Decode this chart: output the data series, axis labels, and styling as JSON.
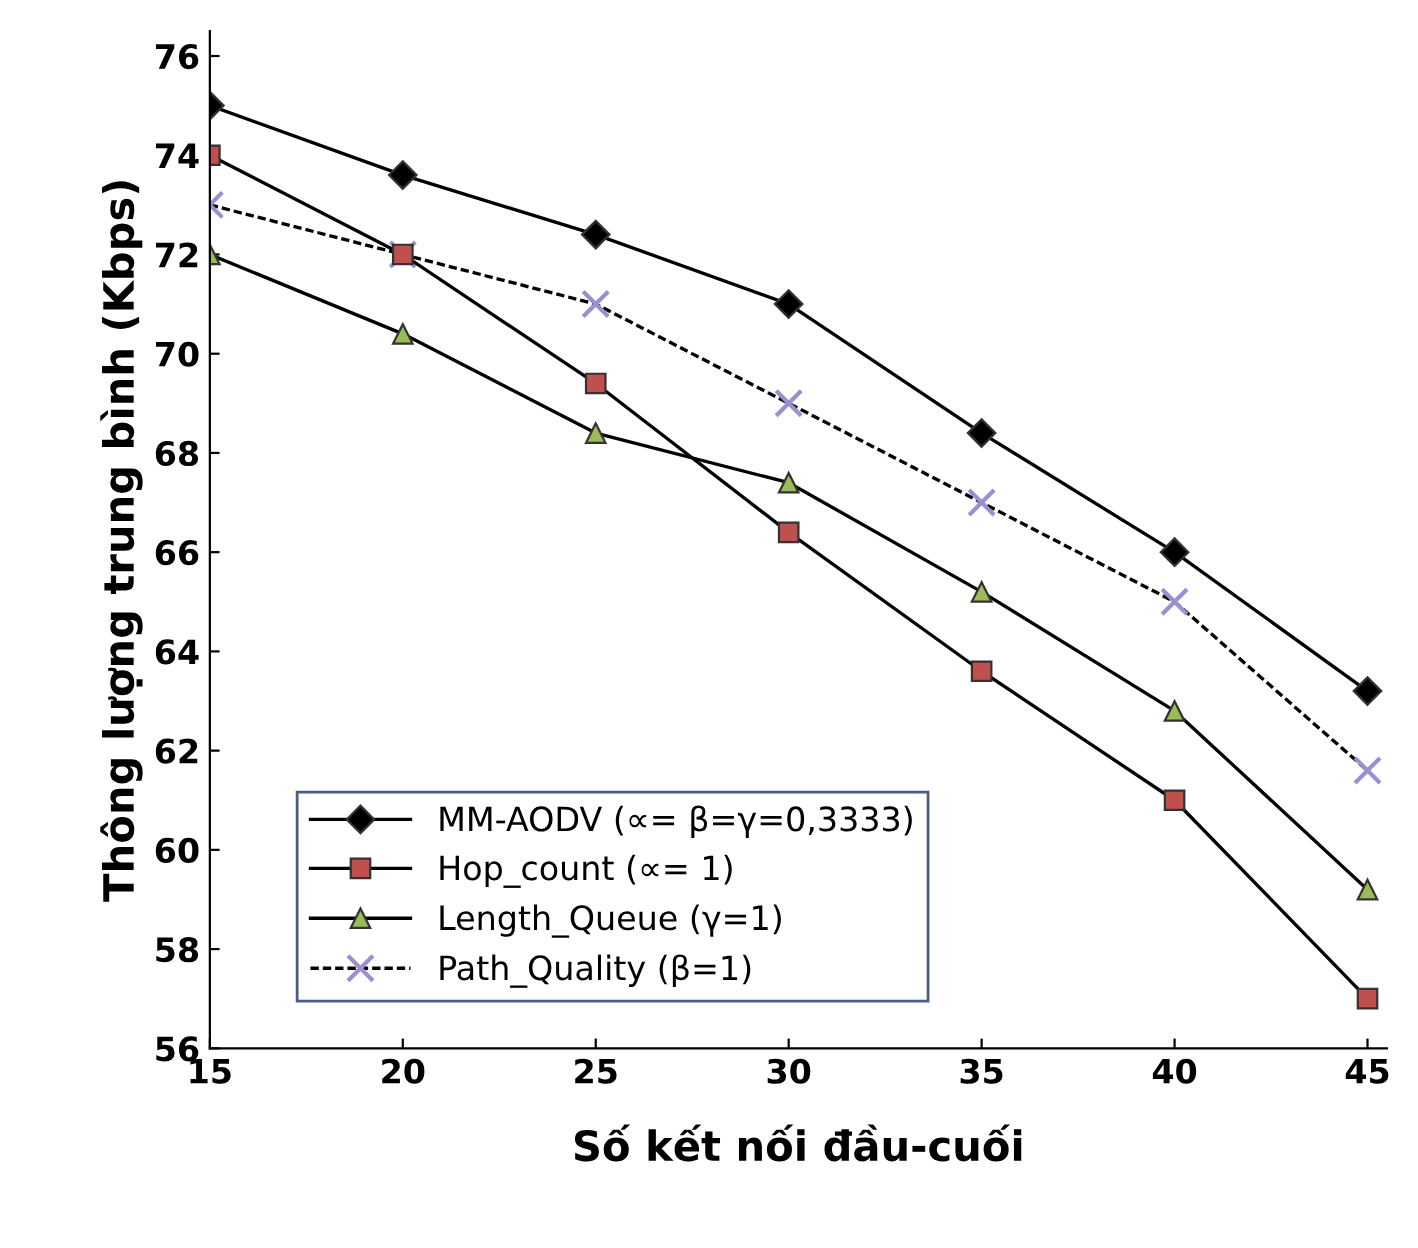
{
  "chart_data": {
    "type": "line",
    "xlabel": "Số kết nối đầu-cuối",
    "ylabel": "Thông lượng trung bình (Kbps)",
    "x": [
      15,
      20,
      25,
      30,
      35,
      40,
      45
    ],
    "xlim": [
      15,
      45.5
    ],
    "xticks": [
      15,
      20,
      25,
      30,
      35,
      40,
      45
    ],
    "ylim": [
      56,
      76.5
    ],
    "yticks": [
      56,
      58,
      60,
      62,
      64,
      66,
      68,
      70,
      72,
      74,
      76
    ],
    "grid": false,
    "legend": "bottom left",
    "series": [
      {
        "name": "MM-AODV (∝= β=γ=0,3333)",
        "color": "#000000",
        "marker": "diamond",
        "line_style": "solid",
        "values": [
          75,
          73.6,
          72.4,
          71,
          68.4,
          66,
          63.2
        ]
      },
      {
        "name": "Hop_count (∝= 1)",
        "color": "#c0504d",
        "marker": "square",
        "line_style": "solid",
        "values": [
          74,
          72,
          69.4,
          66.4,
          63.6,
          61,
          57
        ]
      },
      {
        "name": "Length_Queue (γ=1)",
        "color": "#9bbb59",
        "marker": "triangle",
        "line_style": "solid",
        "values": [
          72,
          70.4,
          68.4,
          67.4,
          65.2,
          62.8,
          59.2
        ]
      },
      {
        "name": "Path_Quality (β=1)",
        "color": "#9b8fd0",
        "marker": "cross",
        "line_style": "dashed",
        "values": [
          73,
          72,
          71,
          69,
          67,
          65,
          61.6
        ]
      }
    ]
  }
}
